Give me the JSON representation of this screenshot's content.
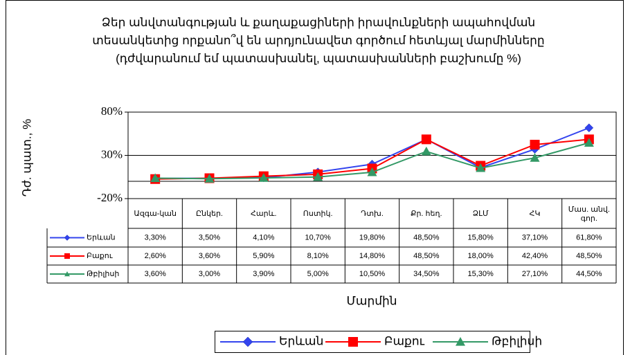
{
  "chart_data": {
    "type": "line",
    "title": "Ձեր անվտանգության և քաղաքացիների իրավունքների ապահովման\nտեսանկետից որքանո՞վ են արդյունավետ գործում հետևյալ մարմինները",
    "subtitle": "(դժվարանում եմ պատասխանել, պատասխանների բաշխումը %)",
    "y_label": "Դժ. պատ., %",
    "x_label": "Մարմին",
    "categories": [
      "Ազգա-կան",
      "Ընկեր.",
      "Հարև.",
      "Ոստիկ.",
      "Դտխ.",
      "Քր. հեղ.",
      "ՁԼՄ",
      "ՀԿ",
      "Մաս. անվ. գոր."
    ],
    "series": [
      {
        "name": "Երևան",
        "color": "#3344ee",
        "marker": "diamond",
        "values": [
          3.3,
          3.5,
          4.1,
          10.7,
          19.8,
          48.5,
          15.8,
          37.1,
          61.8
        ],
        "value_labels": [
          "3,30%",
          "3,50%",
          "4,10%",
          "10,70%",
          "19,80%",
          "48,50%",
          "15,80%",
          "37,10%",
          "61,80%"
        ]
      },
      {
        "name": "Բաքու",
        "color": "#ff0000",
        "marker": "square",
        "values": [
          2.6,
          3.6,
          5.9,
          8.1,
          14.8,
          48.5,
          18.0,
          42.4,
          48.5
        ],
        "value_labels": [
          "2,60%",
          "3,60%",
          "5,90%",
          "8,10%",
          "14,80%",
          "48,50%",
          "18,00%",
          "42,40%",
          "48,50%"
        ]
      },
      {
        "name": "Թբիլիսի",
        "color": "#339966",
        "marker": "triangle",
        "values": [
          3.6,
          3.0,
          3.9,
          5.0,
          10.5,
          34.5,
          15.3,
          27.1,
          44.5
        ],
        "value_labels": [
          "3,60%",
          "3,00%",
          "3,90%",
          "5,00%",
          "10,50%",
          "34,50%",
          "15,30%",
          "27,10%",
          "44,50%"
        ]
      }
    ],
    "ylim": [
      -20,
      80
    ],
    "yticks": [
      {
        "value": -20,
        "label": "-20%"
      },
      {
        "value": 30,
        "label": "30%"
      },
      {
        "value": 80,
        "label": "80%"
      }
    ],
    "grid": true,
    "legend": "bottom"
  }
}
